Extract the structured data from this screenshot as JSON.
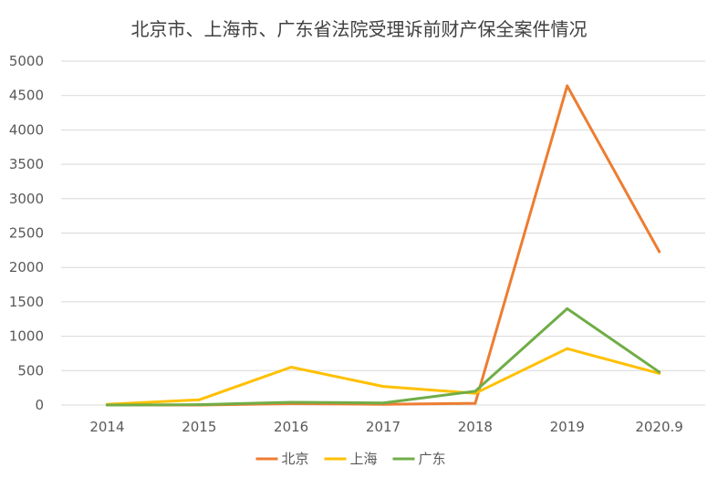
{
  "chart_data": {
    "type": "line",
    "title": "北京市、上海市、广东省法院受理诉前财产保全案件情况",
    "categories": [
      "2014",
      "2015",
      "2016",
      "2017",
      "2018",
      "2019",
      "2020.9"
    ],
    "ylim": [
      0,
      5000
    ],
    "yticks": [
      0,
      500,
      1000,
      1500,
      2000,
      2500,
      3000,
      3500,
      4000,
      4500,
      5000
    ],
    "grid": true,
    "legend_position": "bottom",
    "series": [
      {
        "name": "北京",
        "color": "#ED7D31",
        "values": [
          0,
          0,
          20,
          10,
          25,
          4640,
          2230
        ]
      },
      {
        "name": "上海",
        "color": "#FFC000",
        "values": [
          10,
          75,
          550,
          270,
          170,
          820,
          460
        ]
      },
      {
        "name": "广东",
        "color": "#70AD47",
        "values": [
          0,
          5,
          40,
          30,
          200,
          1400,
          480
        ]
      }
    ]
  }
}
